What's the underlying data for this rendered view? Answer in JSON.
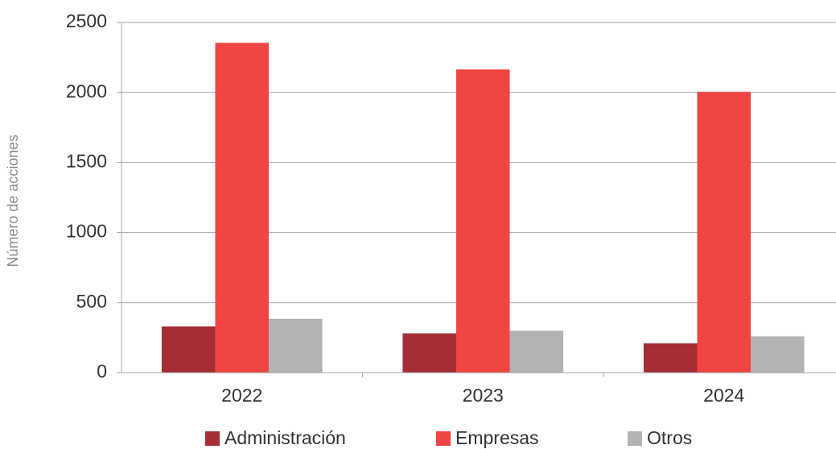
{
  "chart_data": {
    "type": "bar",
    "y_axis_label": "Número de acciones",
    "categories": [
      "2022",
      "2023",
      "2024"
    ],
    "series": [
      {
        "name": "Administración",
        "color": "#a52d33",
        "values": [
          330,
          280,
          210
        ]
      },
      {
        "name": "Empresas",
        "color": "#f04542",
        "values": [
          2355,
          2165,
          2005
        ]
      },
      {
        "name": "Otros",
        "color": "#b3b3b6",
        "values": [
          385,
          300,
          260
        ]
      }
    ],
    "ylim": [
      0,
      2500
    ],
    "yticks": [
      0,
      500,
      1000,
      1500,
      2000,
      2500
    ],
    "grid": true,
    "legend": "bottom"
  }
}
